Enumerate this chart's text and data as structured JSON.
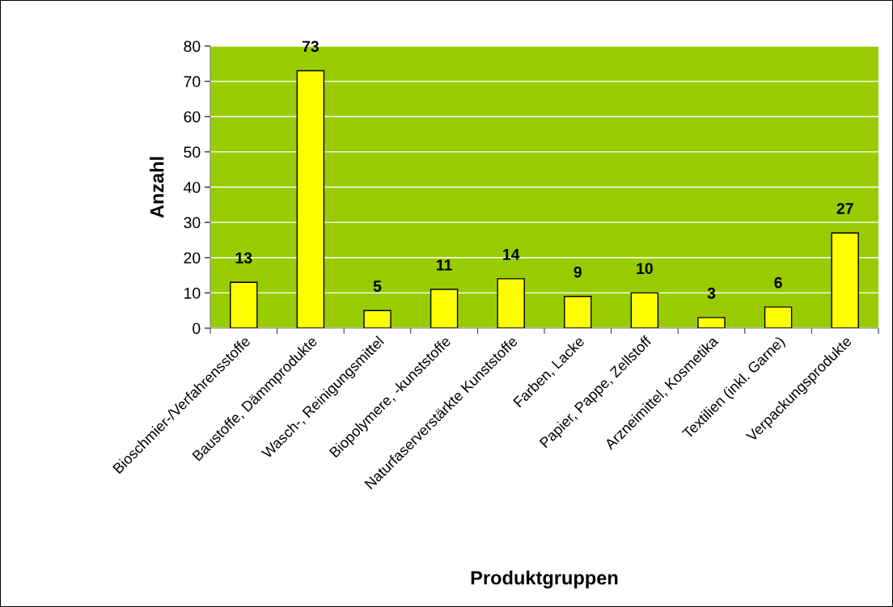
{
  "chart_data": {
    "type": "bar",
    "xlabel": "Produktgruppen",
    "ylabel": "Anzahl",
    "categories": [
      "Bioschmier-/Verfahrensstoffe",
      "Baustoffe, Dämmprodukte",
      "Wasch-, Reinigungsmittel",
      "Biopolymere, -kunststoffe",
      "Naturfaserverstärkte Kunststoffe",
      "Farben, Lacke",
      "Papier, Pappe, Zellstoff",
      "Arzneimittel, Kosmetika",
      "Textilien (inkl. Garne)",
      "Verpackungsprodukte"
    ],
    "values": [
      13,
      73,
      5,
      11,
      14,
      9,
      10,
      3,
      6,
      27
    ],
    "color": "#ffff00",
    "ylim": [
      0,
      80
    ],
    "yticks": [
      0,
      10,
      20,
      30,
      40,
      50,
      60,
      70,
      80
    ],
    "grid": "y",
    "data_labels": true,
    "legend": false
  }
}
